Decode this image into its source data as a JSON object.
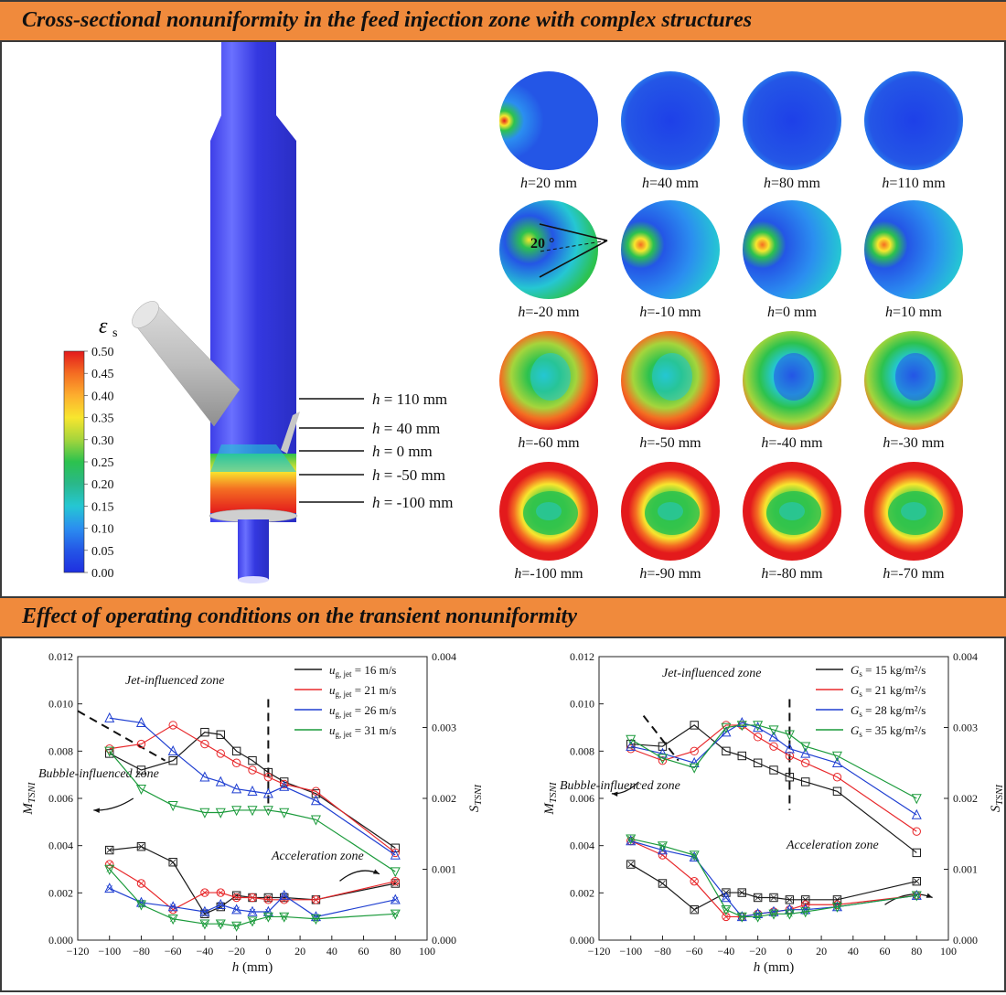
{
  "banners": {
    "top": "Cross-sectional nonuniformity in the feed injection zone with complex structures",
    "bottom": "Effect of operating conditions on the transient nonuniformity"
  },
  "colorbar": {
    "symbol": "ε",
    "subscript": "s",
    "ticks": [
      "0.50",
      "0.45",
      "0.40",
      "0.35",
      "0.30",
      "0.25",
      "0.20",
      "0.15",
      "0.10",
      "0.05",
      "0.00"
    ],
    "colors": [
      "#e31a1c",
      "#f46d22",
      "#fdae2e",
      "#f8e62e",
      "#a5d53c",
      "#2cc24e",
      "#2ab88a",
      "#25c7d3",
      "#2b8ef0",
      "#2456e6",
      "#1e2fe0"
    ]
  },
  "reactor_levels": [
    {
      "h_label": "h",
      "text": " = 110 mm"
    },
    {
      "h_label": "h",
      "text": " = 40 mm"
    },
    {
      "h_label": "h",
      "text": " = 0 mm"
    },
    {
      "h_label": "h",
      "text": " = -50 mm"
    },
    {
      "h_label": "h",
      "text": " = -100 mm"
    }
  ],
  "contours": [
    {
      "label": "=20 mm",
      "style": "uniform-blue-edge"
    },
    {
      "label": "=40 mm",
      "style": "uniform-blue"
    },
    {
      "label": "=80 mm",
      "style": "uniform-blue"
    },
    {
      "label": "=110 mm",
      "style": "uniform-blue"
    },
    {
      "label": "=-20 mm",
      "style": "jet"
    },
    {
      "label": "=-10 mm",
      "style": "jet-weak"
    },
    {
      "label": "=0 mm",
      "style": "jet-weak"
    },
    {
      "label": "=10 mm",
      "style": "jet-weak"
    },
    {
      "label": "=-60 mm",
      "style": "ring-mid"
    },
    {
      "label": "=-50 mm",
      "style": "ring-mid"
    },
    {
      "label": "=-40 mm",
      "style": "ring-blue"
    },
    {
      "label": "=-30 mm",
      "style": "ring-blue"
    },
    {
      "label": "=-100 mm",
      "style": "dense"
    },
    {
      "label": "=-90 mm",
      "style": "dense"
    },
    {
      "label": "=-80 mm",
      "style": "dense"
    },
    {
      "label": "=-70 mm",
      "style": "dense"
    }
  ],
  "angle_label": "20 °",
  "chart_data": [
    {
      "type": "line",
      "xlabel": "h",
      "xunit": " (mm)",
      "ylabel_left": "TSNI",
      "ylabel_left_prefix": "M",
      "ylabel_right": "TSNI",
      "ylabel_right_prefix": "S",
      "xlim": [
        -120,
        100
      ],
      "ylim_left": [
        0,
        0.012
      ],
      "ylim_right": [
        0,
        0.004
      ],
      "xticks": [
        "−120",
        "−100",
        "−80",
        "−60",
        "−40",
        "−20",
        "0",
        "20",
        "40",
        "60",
        "80",
        "100"
      ],
      "yticks_left": [
        "0.000",
        "0.002",
        "0.004",
        "0.006",
        "0.008",
        "0.010",
        "0.012"
      ],
      "yticks_right": [
        "0.000",
        "0.001",
        "0.002",
        "0.003",
        "0.004"
      ],
      "legend": "top-right",
      "annotations": [
        "Jet-influenced zone",
        "Bubble-influenced zone",
        "Acceleration zone"
      ],
      "x": [
        -100,
        -80,
        -60,
        -40,
        -30,
        -20,
        -10,
        0,
        10,
        30,
        80
      ],
      "series": [
        {
          "name": "u",
          "sub": "g, jet",
          "suffix": " = 16 m/s",
          "color": "#1a1a1a",
          "marker": "square",
          "M": [
            0.0079,
            0.0072,
            0.0076,
            0.0088,
            0.0087,
            0.008,
            0.0076,
            0.0071,
            0.0067,
            0.0062,
            0.0039
          ],
          "S": [
            0.00127,
            0.00132,
            0.0011,
            0.00037,
            0.00047,
            0.00063,
            0.0006,
            0.0006,
            0.0006,
            0.00057,
            0.0008
          ]
        },
        {
          "name": "u",
          "sub": "g, jet",
          "suffix": " = 21 m/s",
          "color": "#e8282b",
          "marker": "circle",
          "M": [
            0.0081,
            0.0083,
            0.0091,
            0.0083,
            0.0079,
            0.0075,
            0.0072,
            0.0069,
            0.0066,
            0.0063,
            0.0037
          ],
          "S": [
            0.00107,
            0.0008,
            0.00043,
            0.00067,
            0.00067,
            0.0006,
            0.0006,
            0.00057,
            0.00057,
            0.00057,
            0.00083
          ]
        },
        {
          "name": "u",
          "sub": "g, jet",
          "suffix": " = 26 m/s",
          "color": "#1f3fd1",
          "marker": "triangle-up",
          "M": [
            0.0094,
            0.0092,
            0.008,
            0.0069,
            0.0067,
            0.0064,
            0.0063,
            0.0062,
            0.0065,
            0.0059,
            0.0036
          ],
          "S": [
            0.00073,
            0.00053,
            0.00047,
            0.0004,
            0.0005,
            0.00043,
            0.0004,
            0.0004,
            0.00063,
            0.00033,
            0.00057
          ]
        },
        {
          "name": "u",
          "sub": "g, jet",
          "suffix": " = 31 m/s",
          "color": "#1a9a3a",
          "marker": "triangle-down",
          "M": [
            0.008,
            0.0064,
            0.0057,
            0.0054,
            0.0054,
            0.0055,
            0.0055,
            0.0055,
            0.0054,
            0.0051,
            0.0029
          ],
          "S": [
            0.001,
            0.0005,
            0.0003,
            0.00023,
            0.00023,
            0.0002,
            0.00027,
            0.00033,
            0.00033,
            0.0003,
            0.00037
          ]
        }
      ]
    },
    {
      "type": "line",
      "xlabel": "h",
      "xunit": " (mm)",
      "ylabel_left": "TSNI",
      "ylabel_left_prefix": "M",
      "ylabel_right": "TSNI",
      "ylabel_right_prefix": "S",
      "xlim": [
        -120,
        100
      ],
      "ylim_left": [
        0,
        0.012
      ],
      "ylim_right": [
        0,
        0.004
      ],
      "xticks": [
        "−120",
        "−100",
        "−80",
        "−60",
        "−40",
        "−20",
        "0",
        "20",
        "40",
        "60",
        "80",
        "100"
      ],
      "yticks_left": [
        "0.000",
        "0.002",
        "0.004",
        "0.006",
        "0.008",
        "0.010",
        "0.012"
      ],
      "yticks_right": [
        "0.000",
        "0.001",
        "0.002",
        "0.003",
        "0.004"
      ],
      "legend": "top-right",
      "annotations": [
        "Jet-influenced zone",
        "Bubble-influenced zone",
        "Acceleration zone"
      ],
      "x": [
        -100,
        -80,
        -60,
        -40,
        -30,
        -20,
        -10,
        0,
        10,
        30,
        80
      ],
      "series": [
        {
          "name": "G",
          "sub": "s",
          "suffix": " = 15 kg/m²/s",
          "color": "#1a1a1a",
          "marker": "square",
          "M": [
            0.0083,
            0.0082,
            0.0091,
            0.008,
            0.0078,
            0.0075,
            0.0072,
            0.0069,
            0.0067,
            0.0063,
            0.0037
          ],
          "S": [
            0.00107,
            0.0008,
            0.00043,
            0.00067,
            0.00067,
            0.0006,
            0.0006,
            0.00057,
            0.00057,
            0.00057,
            0.00083
          ]
        },
        {
          "name": "G",
          "sub": "s",
          "suffix": " = 21 kg/m²/s",
          "color": "#e8282b",
          "marker": "circle",
          "M": [
            0.0081,
            0.0076,
            0.008,
            0.0091,
            0.0091,
            0.0086,
            0.0082,
            0.0078,
            0.0075,
            0.0069,
            0.0046
          ],
          "S": [
            0.0014,
            0.0012,
            0.00083,
            0.00033,
            0.00033,
            0.00037,
            0.0004,
            0.00043,
            0.0005,
            0.0005,
            0.00063
          ]
        },
        {
          "name": "G",
          "sub": "s",
          "suffix": " = 28 kg/m²/s",
          "color": "#1f3fd1",
          "marker": "triangle-up",
          "M": [
            0.0082,
            0.0079,
            0.0075,
            0.0088,
            0.0092,
            0.009,
            0.0086,
            0.0081,
            0.0079,
            0.0075,
            0.0053
          ],
          "S": [
            0.0014,
            0.00127,
            0.00117,
            0.0006,
            0.00033,
            0.00037,
            0.0004,
            0.00043,
            0.00043,
            0.00047,
            0.00063
          ]
        },
        {
          "name": "G",
          "sub": "s",
          "suffix": " = 35 kg/m²/s",
          "color": "#1a9a3a",
          "marker": "triangle-down",
          "M": [
            0.0085,
            0.0077,
            0.0073,
            0.009,
            0.0091,
            0.0091,
            0.0089,
            0.0087,
            0.0082,
            0.0078,
            0.006
          ],
          "S": [
            0.00143,
            0.00133,
            0.0012,
            0.00043,
            0.00033,
            0.00033,
            0.00037,
            0.00037,
            0.0004,
            0.00047,
            0.00063
          ]
        }
      ]
    }
  ]
}
